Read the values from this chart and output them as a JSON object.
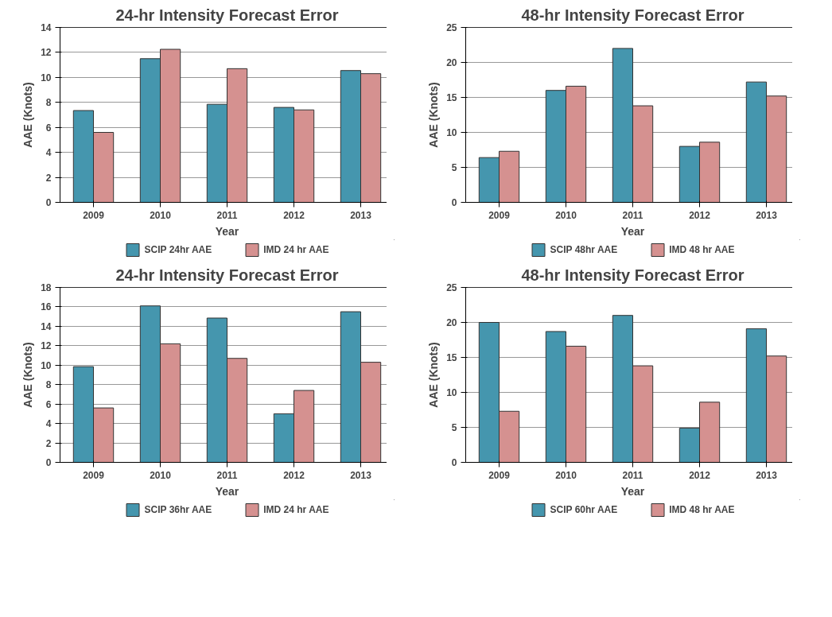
{
  "chart_data": [
    {
      "type": "bar",
      "title": "24-hr Intensity Forecast Error",
      "xlabel": "Year",
      "ylabel": "AAE (Knots)",
      "categories": [
        "2009",
        "2010",
        "2011",
        "2012",
        "2013"
      ],
      "ylim": [
        0,
        14
      ],
      "yticks": [
        0,
        2,
        4,
        6,
        8,
        10,
        12,
        14
      ],
      "grid": "y",
      "legend": "bottom",
      "series": [
        {
          "name": "SCIP 24hr AAE",
          "color": "#4596ae",
          "values": [
            7.35,
            11.5,
            7.85,
            7.6,
            10.55
          ]
        },
        {
          "name": "IMD 24 hr AAE",
          "color": "#d59190",
          "values": [
            5.6,
            12.25,
            10.7,
            7.4,
            10.3
          ]
        }
      ]
    },
    {
      "type": "bar",
      "title": "48-hr Intensity Forecast Error",
      "xlabel": "Year",
      "ylabel": "AAE (Knots)",
      "categories": [
        "2009",
        "2010",
        "2011",
        "2012",
        "2013"
      ],
      "ylim": [
        0,
        25
      ],
      "yticks": [
        0,
        5,
        10,
        15,
        20,
        25
      ],
      "grid": "y",
      "legend": "bottom",
      "series": [
        {
          "name": "SCIP 48hr AAE",
          "color": "#4596ae",
          "values": [
            6.4,
            16.0,
            22.0,
            8.0,
            17.2
          ]
        },
        {
          "name": "IMD 48 hr AAE",
          "color": "#d59190",
          "values": [
            7.3,
            16.6,
            13.8,
            8.6,
            15.2
          ]
        }
      ]
    },
    {
      "type": "bar",
      "title": "24-hr Intensity Forecast Error",
      "xlabel": "Year",
      "ylabel": "AAE (Knots)",
      "categories": [
        "2009",
        "2010",
        "2011",
        "2012",
        "2013"
      ],
      "ylim": [
        0,
        18
      ],
      "yticks": [
        0,
        2,
        4,
        6,
        8,
        10,
        12,
        14,
        16,
        18
      ],
      "grid": "y",
      "legend": "bottom",
      "series": [
        {
          "name": "SCIP 36hr AAE",
          "color": "#4596ae",
          "values": [
            9.85,
            16.1,
            14.85,
            5.0,
            15.5
          ]
        },
        {
          "name": "IMD 24 hr AAE",
          "color": "#d59190",
          "values": [
            5.6,
            12.2,
            10.7,
            7.4,
            10.3
          ]
        }
      ]
    },
    {
      "type": "bar",
      "title": "48-hr Intensity Forecast Error",
      "xlabel": "Year",
      "ylabel": "AAE (Knots)",
      "categories": [
        "2009",
        "2010",
        "2011",
        "2012",
        "2013"
      ],
      "ylim": [
        0,
        25
      ],
      "yticks": [
        0,
        5,
        10,
        15,
        20,
        25
      ],
      "grid": "y",
      "legend": "bottom",
      "series": [
        {
          "name": "SCIP 60hr AAE",
          "color": "#4596ae",
          "values": [
            20.0,
            18.7,
            21.0,
            4.9,
            19.1
          ]
        },
        {
          "name": "IMD 48 hr AAE",
          "color": "#d59190",
          "values": [
            7.3,
            16.6,
            13.8,
            8.6,
            15.2
          ]
        }
      ]
    }
  ]
}
